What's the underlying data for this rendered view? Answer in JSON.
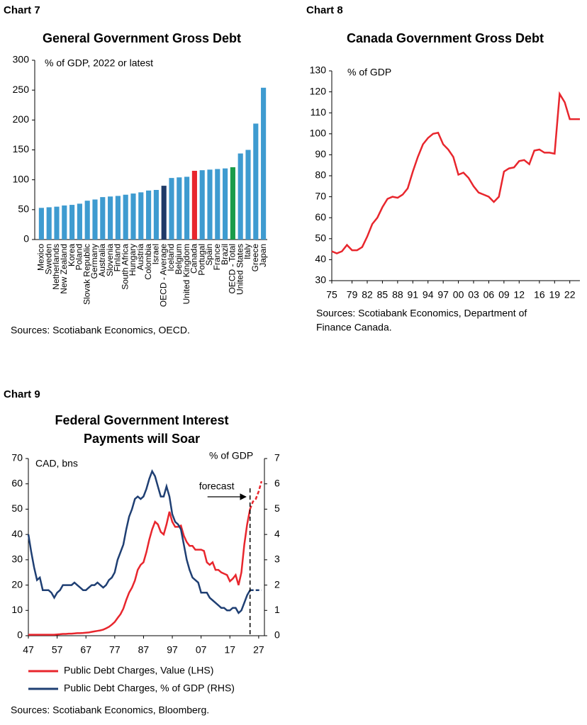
{
  "chart_data": [
    {
      "type": "bar",
      "label": "Chart 7",
      "title": "General Government Gross Debt",
      "unit_label": "% of GDP, 2022 or latest",
      "source": [
        "Sources: Scotiabank Economics, OECD."
      ],
      "categories": [
        "Mexico",
        "Sweden",
        "Netherlands",
        "New Zealand",
        "Korea",
        "Poland",
        "Slovak Republic",
        "Germany",
        "Australia",
        "Slovenia",
        "Finland",
        "South Africa",
        "Hungary",
        "Austria",
        "Colombia",
        "Israel",
        "OECD - Average",
        "Iceland",
        "Belgium",
        "United Kingdom",
        "Canada",
        "Portugal",
        "Spain",
        "France",
        "Brazil",
        "OECD - Total",
        "United States",
        "Italy",
        "Greece",
        "Japan"
      ],
      "values": [
        53,
        54,
        55,
        57,
        58,
        60,
        65,
        67,
        71,
        72,
        73,
        75,
        77,
        79,
        82,
        83,
        90,
        103,
        104,
        105,
        115,
        116,
        117,
        118,
        119,
        121,
        144,
        150,
        194,
        254
      ],
      "colors": [
        "#3e9bd0",
        "#3e9bd0",
        "#3e9bd0",
        "#3e9bd0",
        "#3e9bd0",
        "#3e9bd0",
        "#3e9bd0",
        "#3e9bd0",
        "#3e9bd0",
        "#3e9bd0",
        "#3e9bd0",
        "#3e9bd0",
        "#3e9bd0",
        "#3e9bd0",
        "#3e9bd0",
        "#3e9bd0",
        "#1f3a68",
        "#3e9bd0",
        "#3e9bd0",
        "#3e9bd0",
        "#e8262d",
        "#3e9bd0",
        "#3e9bd0",
        "#3e9bd0",
        "#3e9bd0",
        "#1a9c4a",
        "#3e9bd0",
        "#3e9bd0",
        "#3e9bd0",
        "#3e9bd0"
      ],
      "ylim": [
        0,
        300
      ],
      "yticks": [
        0,
        50,
        100,
        150,
        200,
        250,
        300
      ]
    },
    {
      "type": "line",
      "label": "Chart 8",
      "title": "Canada Government Gross Debt",
      "unit_label": "% of GDP",
      "source": [
        "Sources: Scotiabank Economics, Department of",
        "Finance Canada."
      ],
      "x": [
        1975,
        1976,
        1977,
        1978,
        1979,
        1980,
        1981,
        1982,
        1983,
        1984,
        1985,
        1986,
        1987,
        1988,
        1989,
        1990,
        1991,
        1992,
        1993,
        1994,
        1995,
        1996,
        1997,
        1998,
        1999,
        2000,
        2001,
        2002,
        2003,
        2004,
        2005,
        2006,
        2007,
        2008,
        2009,
        2010,
        2011,
        2012,
        2013,
        2014,
        2015,
        2016,
        2017,
        2018,
        2019,
        2020,
        2021,
        2022,
        2023,
        2024
      ],
      "series": [
        {
          "color": "#e8262d",
          "values": [
            44,
            43,
            44,
            47,
            44.5,
            44.5,
            46,
            51,
            57,
            60,
            65,
            69,
            70,
            69.5,
            71,
            74,
            82,
            89,
            95,
            98,
            100,
            100.5,
            95,
            92.5,
            89,
            80.5,
            81.5,
            79,
            75,
            72,
            71,
            70,
            67.5,
            70,
            82,
            83.5,
            84,
            87,
            87.5,
            85.5,
            92,
            92.5,
            91,
            91,
            90.5,
            119,
            115,
            107,
            107,
            107
          ]
        }
      ],
      "xlim": [
        1975,
        2024
      ],
      "xticks": [
        {
          "value": 1975,
          "label": "75"
        },
        {
          "value": 1979,
          "label": "79"
        },
        {
          "value": 1982,
          "label": "82"
        },
        {
          "value": 1985,
          "label": "85"
        },
        {
          "value": 1988,
          "label": "88"
        },
        {
          "value": 1991,
          "label": "91"
        },
        {
          "value": 1994,
          "label": "94"
        },
        {
          "value": 1997,
          "label": "97"
        },
        {
          "value": 2000,
          "label": "00"
        },
        {
          "value": 2003,
          "label": "03"
        },
        {
          "value": 2006,
          "label": "06"
        },
        {
          "value": 2009,
          "label": "09"
        },
        {
          "value": 2012,
          "label": "12"
        },
        {
          "value": 2016,
          "label": "16"
        },
        {
          "value": 2019,
          "label": "19"
        },
        {
          "value": 2022,
          "label": "22"
        }
      ],
      "ylim": [
        30,
        130
      ],
      "yticks": [
        30,
        40,
        50,
        60,
        70,
        80,
        90,
        100,
        110,
        120,
        130
      ]
    },
    {
      "type": "line",
      "label": "Chart 9",
      "title": [
        "Federal Government Interest",
        "Payments will Soar"
      ],
      "unit_label": "CAD, bns",
      "y2_label": "% of GDP",
      "annotation": "forecast",
      "forecast_start": 2024,
      "source": [
        "Sources: Scotiabank Economics, Bloomberg."
      ],
      "x": [
        1947,
        1948,
        1949,
        1950,
        1951,
        1952,
        1953,
        1954,
        1955,
        1956,
        1957,
        1958,
        1959,
        1960,
        1961,
        1962,
        1963,
        1964,
        1965,
        1966,
        1967,
        1968,
        1969,
        1970,
        1971,
        1972,
        1973,
        1974,
        1975,
        1976,
        1977,
        1978,
        1979,
        1980,
        1981,
        1982,
        1983,
        1984,
        1985,
        1986,
        1987,
        1988,
        1989,
        1990,
        1991,
        1992,
        1993,
        1994,
        1995,
        1996,
        1997,
        1998,
        1999,
        2000,
        2001,
        2002,
        2003,
        2004,
        2005,
        2006,
        2007,
        2008,
        2009,
        2010,
        2011,
        2012,
        2013,
        2014,
        2015,
        2016,
        2017,
        2018,
        2019,
        2020,
        2021,
        2022,
        2023,
        2024,
        2025,
        2026,
        2027,
        2028
      ],
      "series": [
        {
          "name": "Public Debt Charges, Value (LHS)",
          "color": "#e8262d",
          "values": [
            0.4,
            0.4,
            0.4,
            0.4,
            0.4,
            0.4,
            0.4,
            0.4,
            0.4,
            0.4,
            0.5,
            0.6,
            0.7,
            0.7,
            0.8,
            0.8,
            0.9,
            1.0,
            1.0,
            1.1,
            1.2,
            1.3,
            1.5,
            1.7,
            1.9,
            2.1,
            2.4,
            2.9,
            3.5,
            4.4,
            5.4,
            7.0,
            8.5,
            10.7,
            14.1,
            17.0,
            19.0,
            21.8,
            26.0,
            28.0,
            29.0,
            33.0,
            38.0,
            42.0,
            45.0,
            44.0,
            41.0,
            40.0,
            44.0,
            49.0,
            45.0,
            43.0,
            43.0,
            43.5,
            39.5,
            37.0,
            35.5,
            35.5,
            34.0,
            34.0,
            34.0,
            33.5,
            29.0,
            28.0,
            29.0,
            26.0,
            26.0,
            25.0,
            24.5,
            24.0,
            21.5,
            22.5,
            24.0,
            20.0,
            25.0,
            36.0,
            44.0,
            50.0,
            53.0,
            54.0,
            57.0,
            61.0
          ]
        },
        {
          "name": "Public Debt Charges, % of GDP (RHS)",
          "color": "#1f3f73",
          "axis": "y2",
          "values": [
            4.0,
            3.3,
            2.7,
            2.2,
            2.3,
            1.8,
            1.8,
            1.8,
            1.7,
            1.5,
            1.7,
            1.8,
            2.0,
            2.0,
            2.0,
            2.0,
            2.1,
            2.0,
            1.9,
            1.8,
            1.8,
            1.9,
            2.0,
            2.0,
            2.1,
            2.0,
            1.9,
            2.0,
            2.2,
            2.3,
            2.5,
            3.0,
            3.3,
            3.6,
            4.2,
            4.7,
            5.0,
            5.4,
            5.5,
            5.4,
            5.5,
            5.8,
            6.2,
            6.5,
            6.3,
            5.9,
            5.5,
            5.5,
            5.9,
            5.5,
            4.8,
            4.5,
            4.4,
            4.2,
            3.6,
            3.0,
            2.6,
            2.3,
            2.2,
            2.1,
            1.7,
            1.7,
            1.7,
            1.5,
            1.4,
            1.3,
            1.2,
            1.1,
            1.1,
            1.0,
            1.0,
            1.1,
            1.1,
            0.9,
            1.0,
            1.3,
            1.6,
            1.8,
            1.8,
            1.8,
            1.8,
            1.8
          ]
        }
      ],
      "xlim": [
        1947,
        2029
      ],
      "xticks": [
        {
          "value": 1947,
          "label": "47"
        },
        {
          "value": 1957,
          "label": "57"
        },
        {
          "value": 1967,
          "label": "67"
        },
        {
          "value": 1977,
          "label": "77"
        },
        {
          "value": 1987,
          "label": "87"
        },
        {
          "value": 1997,
          "label": "97"
        },
        {
          "value": 2007,
          "label": "07"
        },
        {
          "value": 2017,
          "label": "17"
        },
        {
          "value": 2027,
          "label": "27"
        }
      ],
      "ylim": [
        0,
        70
      ],
      "yticks": [
        0,
        10,
        20,
        30,
        40,
        50,
        60,
        70
      ],
      "y2lim": [
        0,
        7
      ],
      "y2ticks": [
        0,
        1,
        2,
        3,
        4,
        5,
        6,
        7
      ]
    }
  ]
}
